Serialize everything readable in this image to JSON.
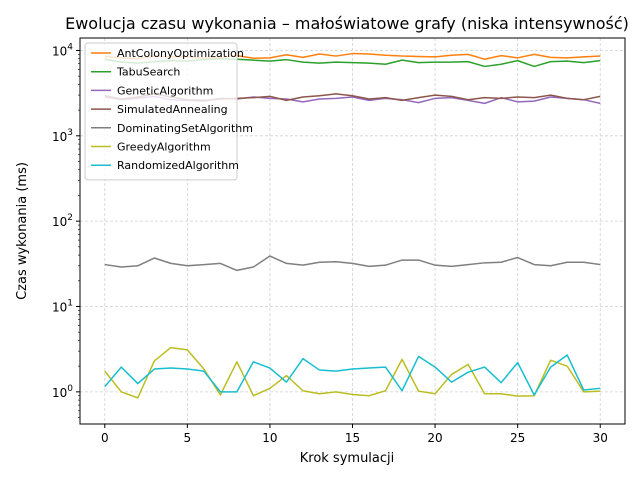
{
  "chart_data": {
    "type": "line",
    "title": "Ewolucja czasu wykonania – małoświatowe grafy (niska intensywność)",
    "xlabel": "Krok symulacji",
    "ylabel": "Czas wykonania (ms)",
    "yscale": "log",
    "xlim": [
      -1.5,
      31.5
    ],
    "ylim": [
      0.42,
      14000
    ],
    "x_ticks": [
      0,
      5,
      10,
      15,
      20,
      25,
      30
    ],
    "y_ticks": [
      {
        "value": 1,
        "base": "10",
        "exp": "0"
      },
      {
        "value": 10,
        "base": "10",
        "exp": "1"
      },
      {
        "value": 100,
        "base": "10",
        "exp": "2"
      },
      {
        "value": 1000,
        "base": "10",
        "exp": "3"
      },
      {
        "value": 10000,
        "base": "10",
        "exp": "4"
      }
    ],
    "grid": true,
    "legend_position": "top-left",
    "x": [
      0,
      1,
      2,
      3,
      4,
      5,
      6,
      7,
      8,
      9,
      10,
      11,
      12,
      13,
      14,
      15,
      16,
      17,
      18,
      19,
      20,
      21,
      22,
      23,
      24,
      25,
      26,
      27,
      28,
      29,
      30
    ],
    "series": [
      {
        "name": "AntColonyOptimization",
        "color": "#ff7f0e",
        "values": [
          8500,
          8200,
          8000,
          8600,
          8400,
          8500,
          8100,
          8300,
          8700,
          8100,
          8200,
          8900,
          8300,
          9100,
          8600,
          9200,
          9100,
          8800,
          8600,
          8500,
          8400,
          8800,
          9000,
          7900,
          8700,
          8200,
          9000,
          8300,
          8200,
          8400,
          8600
        ]
      },
      {
        "name": "TabuSearch",
        "color": "#2ca02c",
        "values": [
          7900,
          7300,
          7100,
          7400,
          7600,
          7500,
          7800,
          8000,
          7900,
          7700,
          7500,
          7800,
          7300,
          7100,
          7300,
          7200,
          7100,
          6900,
          7700,
          7200,
          7300,
          7300,
          7400,
          6500,
          6900,
          7600,
          6500,
          7400,
          7500,
          7200,
          7600
        ]
      },
      {
        "name": "GeneticAlgorithm",
        "color": "#9467bd",
        "values": [
          2850,
          2650,
          2750,
          2900,
          2650,
          2600,
          2550,
          2750,
          2700,
          2850,
          2750,
          2700,
          2500,
          2700,
          2750,
          2850,
          2600,
          2750,
          2650,
          2450,
          2750,
          2800,
          2600,
          2400,
          2800,
          2500,
          2550,
          2850,
          2750,
          2650,
          2400
        ]
      },
      {
        "name": "SimulatedAnnealing",
        "color": "#8c564b",
        "values": [
          2950,
          2700,
          2850,
          3100,
          2850,
          2650,
          2600,
          2700,
          2750,
          2800,
          2900,
          2600,
          2850,
          2950,
          3100,
          2950,
          2700,
          2800,
          2600,
          2800,
          3000,
          2900,
          2650,
          2800,
          2750,
          2850,
          2800,
          3000,
          2750,
          2650,
          2900
        ]
      },
      {
        "name": "DominatingSetAlgorithm",
        "color": "#7f7f7f",
        "values": [
          31,
          29,
          30,
          37,
          32,
          30,
          31,
          32,
          26.5,
          29,
          39,
          32,
          30.5,
          33,
          33.5,
          32,
          29.5,
          30.5,
          35,
          35,
          30.5,
          29.5,
          31,
          32.5,
          33,
          37.5,
          31,
          30,
          33,
          33,
          31
        ]
      },
      {
        "name": "GreedyAlgorithm",
        "color": "#bcbd22",
        "values": [
          1.75,
          1.0,
          0.85,
          2.3,
          3.3,
          3.1,
          1.85,
          0.92,
          2.25,
          0.9,
          1.1,
          1.55,
          1.03,
          0.95,
          1.0,
          0.93,
          0.9,
          1.03,
          2.4,
          1.02,
          0.95,
          1.6,
          2.1,
          0.95,
          0.95,
          0.89,
          0.9,
          2.35,
          2.0,
          1.0,
          1.02
        ]
      },
      {
        "name": "RandomizedAlgorithm",
        "color": "#17becf",
        "values": [
          1.15,
          1.95,
          1.25,
          1.85,
          1.9,
          1.85,
          1.75,
          1.0,
          1.0,
          2.25,
          1.9,
          1.3,
          2.45,
          1.8,
          1.75,
          1.85,
          1.9,
          1.95,
          1.03,
          2.6,
          1.95,
          1.3,
          1.7,
          1.95,
          1.28,
          2.2,
          0.92,
          1.95,
          2.7,
          1.05,
          1.1
        ]
      }
    ]
  }
}
